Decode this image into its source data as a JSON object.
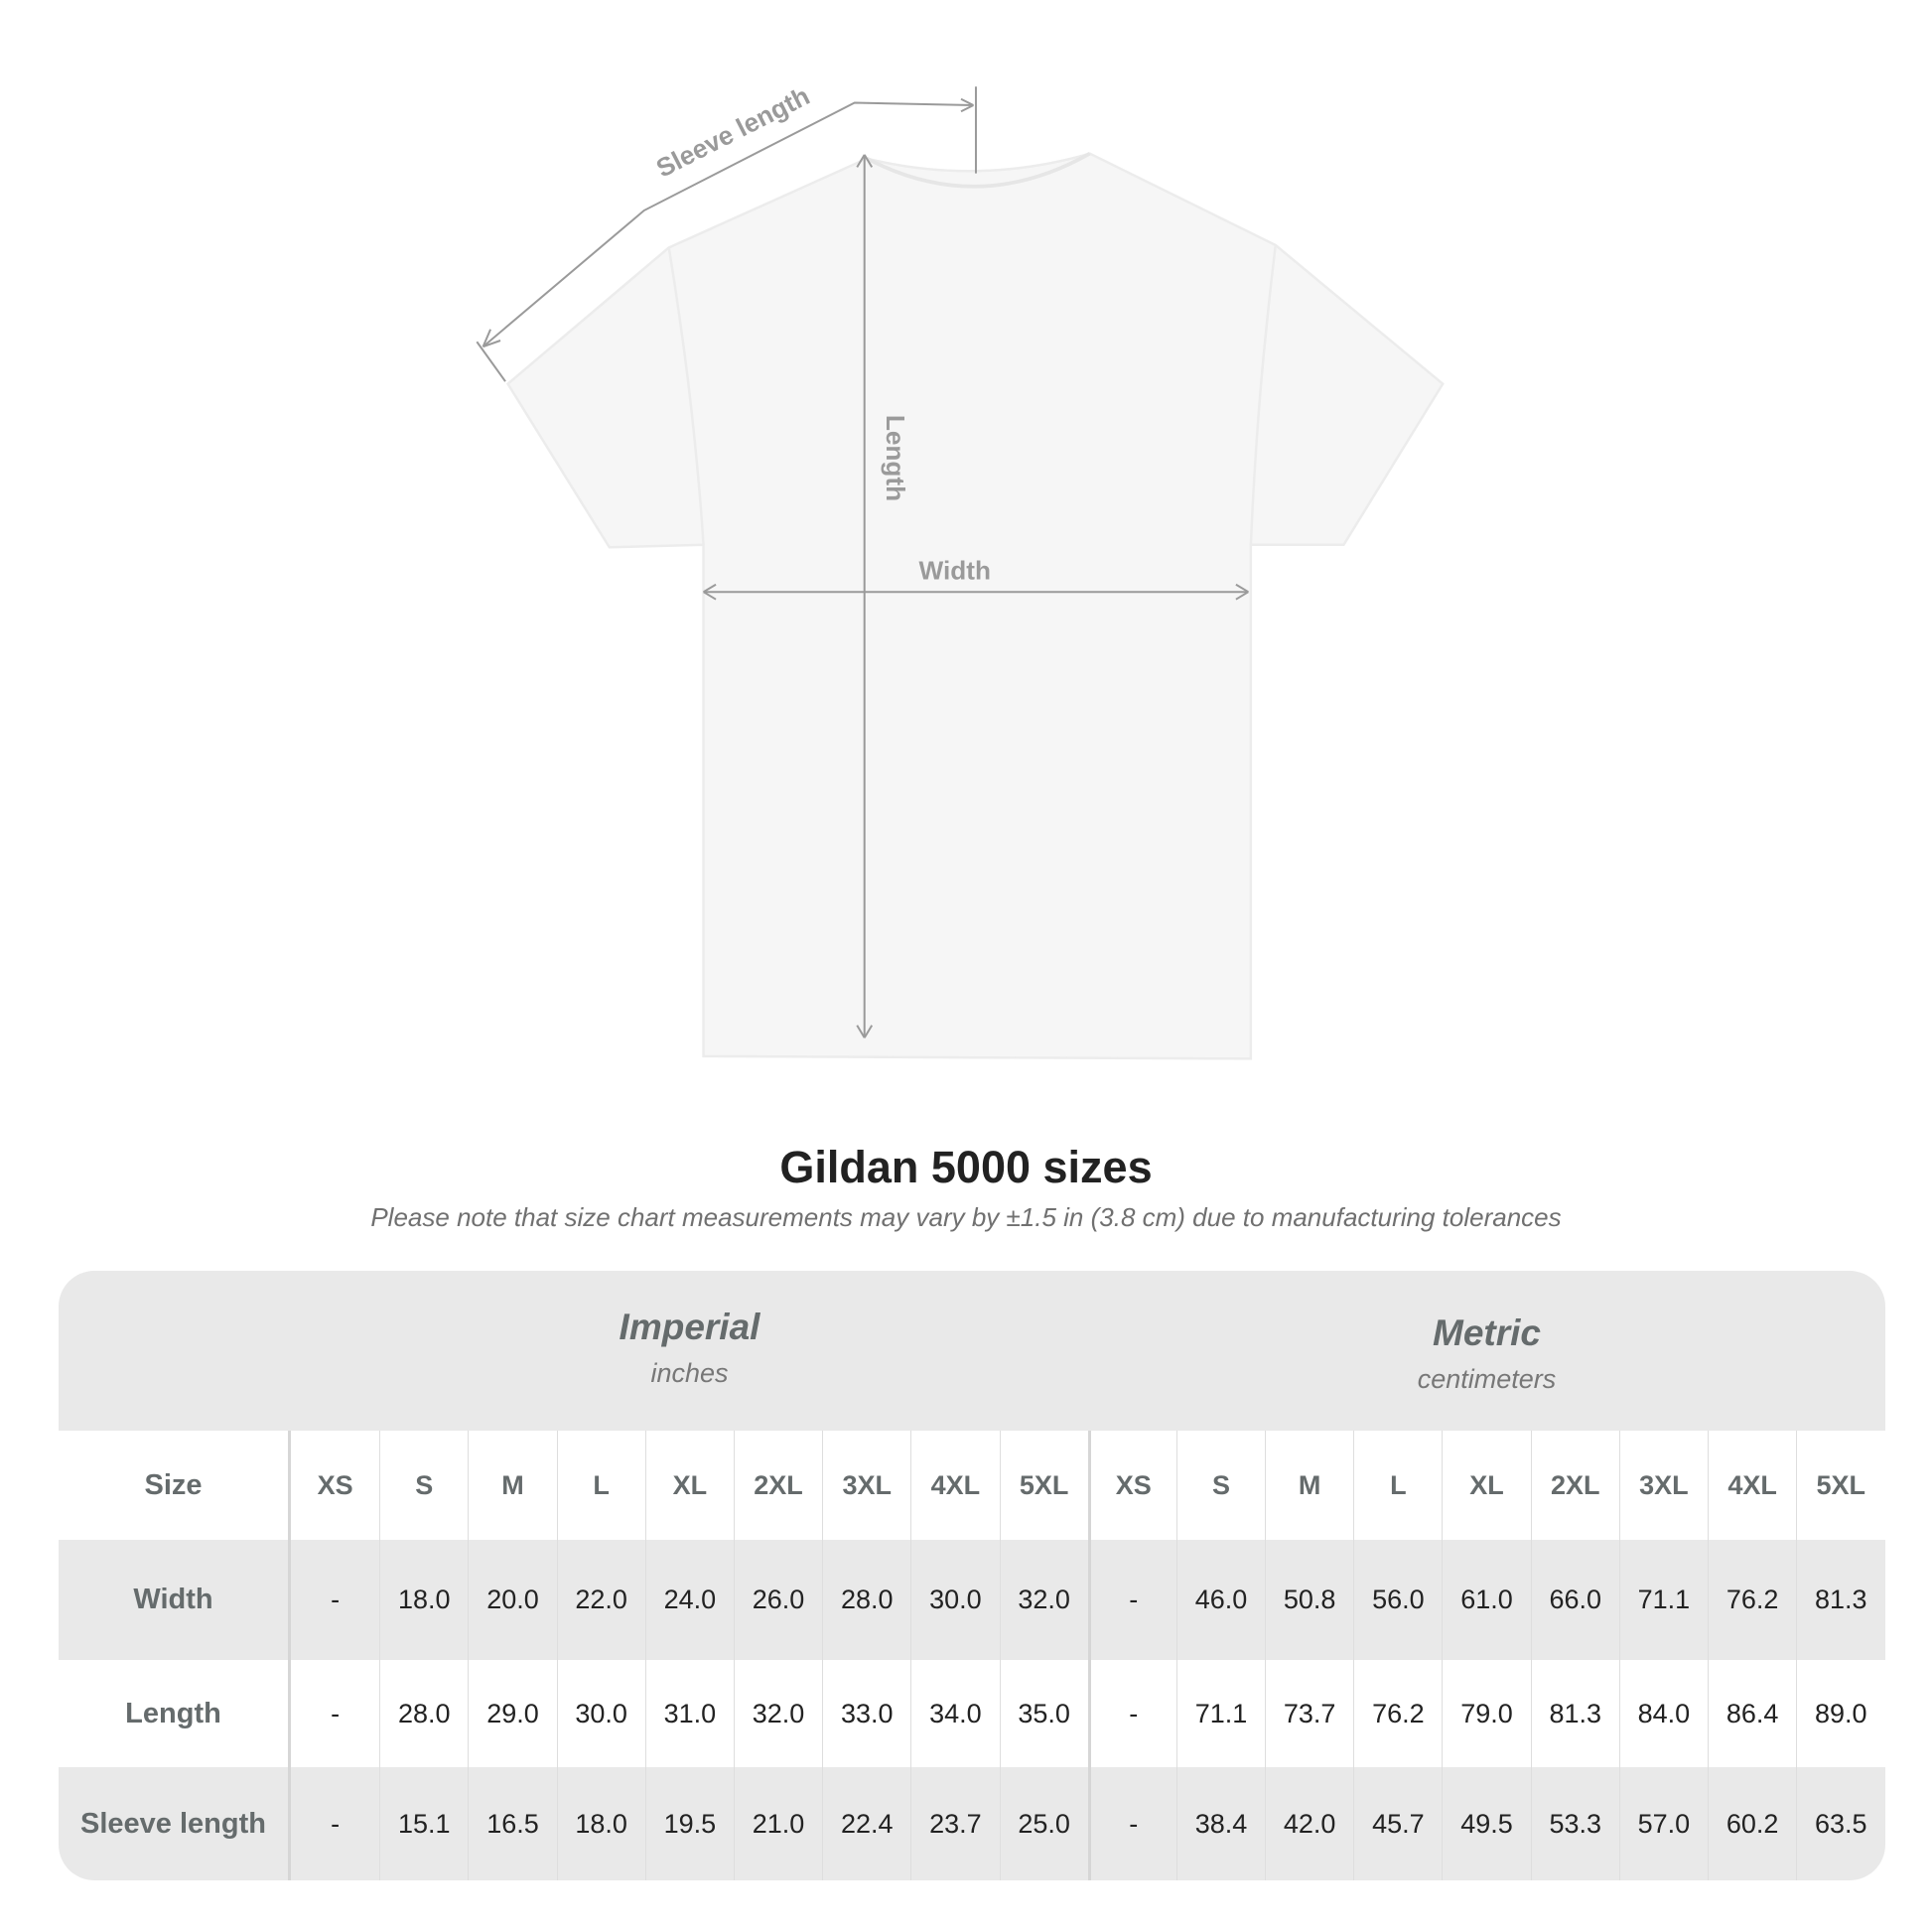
{
  "diagram": {
    "sleeve_label": "Sleeve length",
    "length_label": "Length",
    "width_label": "Width",
    "line_color": "#9a9a9a",
    "shirt_color": "#f6f6f6"
  },
  "title": "Gildan 5000 sizes",
  "note": "Please note that size chart measurements may vary by ±1.5 in (3.8 cm) due to manufacturing tolerances",
  "table": {
    "imperial": {
      "name": "Imperial",
      "unit": "inches"
    },
    "metric": {
      "name": "Metric",
      "unit": "centimeters"
    },
    "size_label": "Size",
    "sizes": [
      "XS",
      "S",
      "M",
      "L",
      "XL",
      "2XL",
      "3XL",
      "4XL",
      "5XL"
    ],
    "rows": [
      {
        "label": "Width",
        "imperial": [
          "-",
          "18.0",
          "20.0",
          "22.0",
          "24.0",
          "26.0",
          "28.0",
          "30.0",
          "32.0"
        ],
        "metric": [
          "-",
          "46.0",
          "50.8",
          "56.0",
          "61.0",
          "66.0",
          "71.1",
          "76.2",
          "81.3"
        ]
      },
      {
        "label": "Length",
        "imperial": [
          "-",
          "28.0",
          "29.0",
          "30.0",
          "31.0",
          "32.0",
          "33.0",
          "34.0",
          "35.0"
        ],
        "metric": [
          "-",
          "71.1",
          "73.7",
          "76.2",
          "79.0",
          "81.3",
          "84.0",
          "86.4",
          "89.0"
        ]
      },
      {
        "label": "Sleeve length",
        "imperial": [
          "-",
          "15.1",
          "16.5",
          "18.0",
          "19.5",
          "21.0",
          "22.4",
          "23.7",
          "25.0"
        ],
        "metric": [
          "-",
          "38.4",
          "42.0",
          "45.7",
          "49.5",
          "53.3",
          "57.0",
          "60.2",
          "63.5"
        ]
      }
    ]
  }
}
